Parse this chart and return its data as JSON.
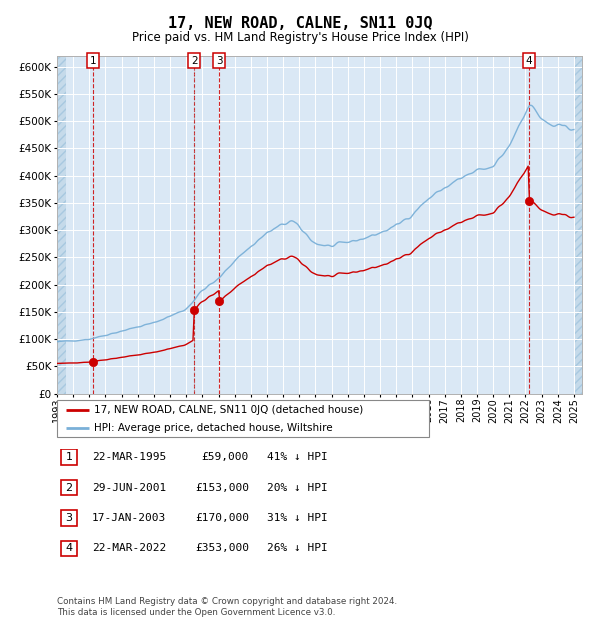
{
  "title": "17, NEW ROAD, CALNE, SN11 0JQ",
  "subtitle": "Price paid vs. HM Land Registry's House Price Index (HPI)",
  "ylim": [
    0,
    620000
  ],
  "yticks": [
    0,
    50000,
    100000,
    150000,
    200000,
    250000,
    300000,
    350000,
    400000,
    450000,
    500000,
    550000,
    600000
  ],
  "xlim_start": 1993.0,
  "xlim_end": 2025.5,
  "plot_bg_color": "#dae8f5",
  "grid_color": "#ffffff",
  "red_line_color": "#cc0000",
  "blue_line_color": "#7ab0d8",
  "transactions": [
    {
      "label": "1",
      "date_num": 1995.22,
      "price": 59000
    },
    {
      "label": "2",
      "date_num": 2001.49,
      "price": 153000
    },
    {
      "label": "3",
      "date_num": 2003.05,
      "price": 170000
    },
    {
      "label": "4",
      "date_num": 2022.22,
      "price": 353000
    }
  ],
  "legend_entry1": "17, NEW ROAD, CALNE, SN11 0JQ (detached house)",
  "legend_entry2": "HPI: Average price, detached house, Wiltshire",
  "table_rows": [
    [
      "1",
      "22-MAR-1995",
      "£59,000",
      "41% ↓ HPI"
    ],
    [
      "2",
      "29-JUN-2001",
      "£153,000",
      "20% ↓ HPI"
    ],
    [
      "3",
      "17-JAN-2003",
      "£170,000",
      "31% ↓ HPI"
    ],
    [
      "4",
      "22-MAR-2022",
      "£353,000",
      "26% ↓ HPI"
    ]
  ],
  "footer": "Contains HM Land Registry data © Crown copyright and database right 2024.\nThis data is licensed under the Open Government Licence v3.0."
}
